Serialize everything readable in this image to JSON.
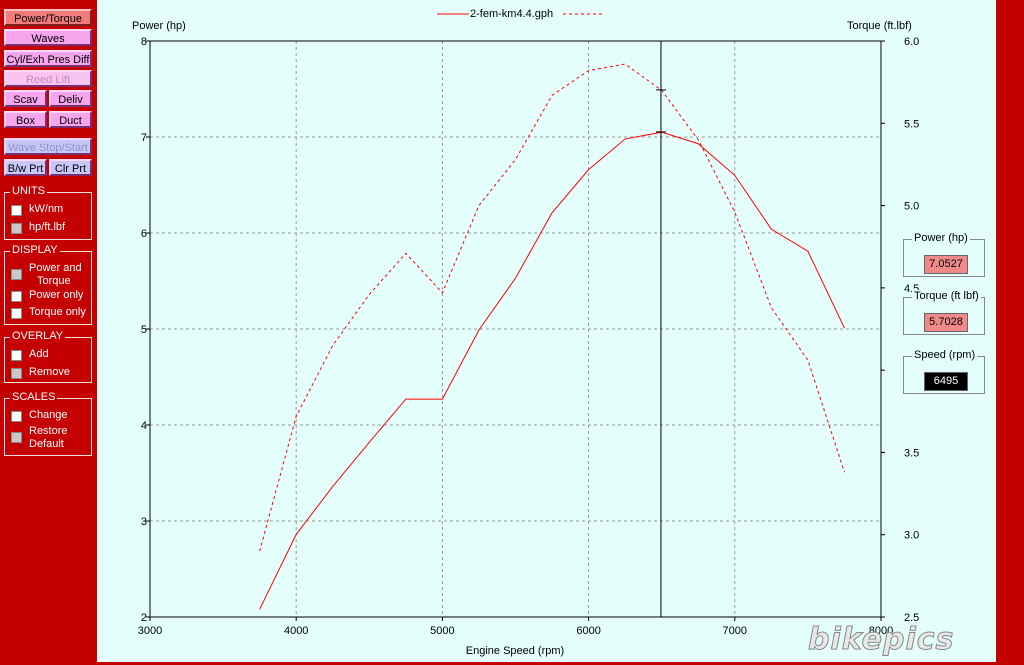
{
  "sidebar": {
    "buttons": {
      "power_torque": "Power/Torque",
      "waves": "Waves",
      "cyl_exh": "Cyl/Exh Pres Diff",
      "reed_lift": "Reed Lift",
      "scav": "Scav",
      "deliv": "Deliv",
      "box": "Box",
      "duct": "Duct",
      "wave_stop": "Wave Stop/Start",
      "bw_prt": "B/w Prt",
      "clr_prt": "Clr Prt"
    },
    "units": {
      "title": "UNITS",
      "kw": "kW/nm",
      "hp": "hp/ft.lbf"
    },
    "display": {
      "title": "DISPLAY",
      "both_line1": "Power and",
      "both_line2": "Torque",
      "power_only": "Power only",
      "torque_only": "Torque only"
    },
    "overlay": {
      "title": "OVERLAY",
      "add": "Add",
      "remove": "Remove"
    },
    "scales": {
      "title": "SCALES",
      "change": "Change",
      "restore_line1": "Restore",
      "restore_line2": "Default"
    }
  },
  "readouts": {
    "power": {
      "label": "Power (hp)",
      "value": "7.0527"
    },
    "torque": {
      "label": "Torque (ft lbf)",
      "value": "5.7028"
    },
    "speed": {
      "label": "Speed (rpm)",
      "value": "6495"
    }
  },
  "logo": "bikepics",
  "colors": {
    "series": "#ff0000",
    "background": "#e4fffb",
    "frame": "#c40000"
  },
  "chart_data": {
    "type": "line",
    "title": "2-fem-km4.4.gph",
    "xlabel": "Engine Speed (rpm)",
    "ylabel": "Power (hp)",
    "y2label": "Torque (ft.lbf)",
    "xlim": [
      3000,
      8000
    ],
    "ylim": [
      2,
      8
    ],
    "y2lim": [
      2.5,
      6.0
    ],
    "xticks": [
      "3000",
      "4000",
      "5000",
      "6000",
      "7000",
      "8000"
    ],
    "yticks": [
      "2",
      "3",
      "4",
      "5",
      "6",
      "7",
      "8"
    ],
    "y2ticks": [
      "2.5",
      "3.0",
      "3.5",
      "4.0",
      "4.5",
      "5.0",
      "5.5",
      "6.0"
    ],
    "grid": true,
    "cursor_x": 6495,
    "series": [
      {
        "axis": "left",
        "style": "solid",
        "x": [
          3750,
          4000,
          4250,
          4500,
          4750,
          5000,
          5250,
          5500,
          5750,
          6000,
          6250,
          6500,
          6750,
          7000,
          7250,
          7500,
          7750
        ],
        "y": [
          2.08,
          2.86,
          3.36,
          3.82,
          4.27,
          4.27,
          4.99,
          5.53,
          6.21,
          6.66,
          6.98,
          7.05,
          6.93,
          6.6,
          6.04,
          5.81,
          5.01
        ]
      },
      {
        "axis": "right",
        "style": "dashed",
        "x": [
          3750,
          4000,
          4250,
          4500,
          4750,
          5000,
          5250,
          5500,
          5750,
          6000,
          6250,
          6500,
          6750,
          7000,
          7250,
          7500,
          7750
        ],
        "y": [
          2.9,
          3.72,
          4.15,
          4.46,
          4.71,
          4.47,
          5.0,
          5.28,
          5.67,
          5.82,
          5.86,
          5.7,
          5.4,
          4.96,
          4.38,
          4.06,
          3.38
        ]
      }
    ]
  }
}
